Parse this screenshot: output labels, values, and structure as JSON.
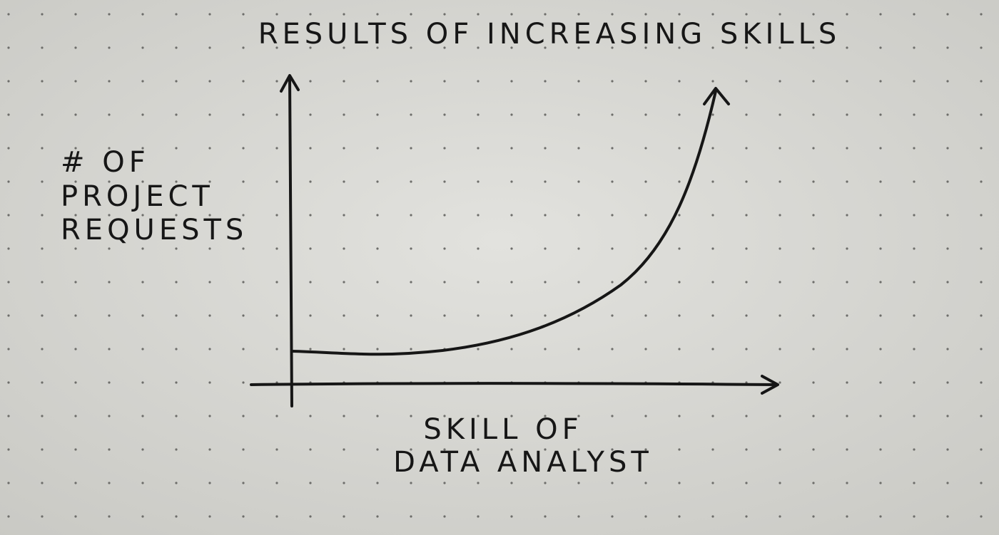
{
  "title": "RESULTS OF INCREASING SKILLS",
  "y_axis_label": [
    "# OF",
    "PROJECT",
    "REQUESTS"
  ],
  "x_axis_label": [
    "SKILL OF",
    "DATA ANALYST"
  ]
}
